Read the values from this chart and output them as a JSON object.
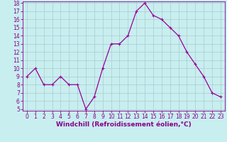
{
  "x": [
    0,
    1,
    2,
    3,
    4,
    5,
    6,
    7,
    8,
    9,
    10,
    11,
    12,
    13,
    14,
    15,
    16,
    17,
    18,
    19,
    20,
    21,
    22,
    23
  ],
  "y": [
    9,
    10,
    8,
    8,
    9,
    8,
    8,
    5,
    6.5,
    10,
    13,
    13,
    14,
    17,
    18,
    16.5,
    16,
    15,
    14,
    12,
    10.5,
    9,
    7,
    6.5
  ],
  "line_color": "#990099",
  "marker": "+",
  "marker_size": 3,
  "marker_linewidth": 0.8,
  "bg_color": "#c8eef0",
  "grid_color": "#aacccc",
  "xlabel": "Windchill (Refroidissement éolien,°C)",
  "xlabel_color": "#880088",
  "tick_color": "#880088",
  "ylim": [
    5,
    18
  ],
  "xlim": [
    -0.5,
    23.5
  ],
  "yticks": [
    5,
    6,
    7,
    8,
    9,
    10,
    11,
    12,
    13,
    14,
    15,
    16,
    17,
    18
  ],
  "xticks": [
    0,
    1,
    2,
    3,
    4,
    5,
    6,
    7,
    8,
    9,
    10,
    11,
    12,
    13,
    14,
    15,
    16,
    17,
    18,
    19,
    20,
    21,
    22,
    23
  ],
  "line_width": 0.9,
  "tick_fontsize": 5.5,
  "xlabel_fontsize": 6.5
}
